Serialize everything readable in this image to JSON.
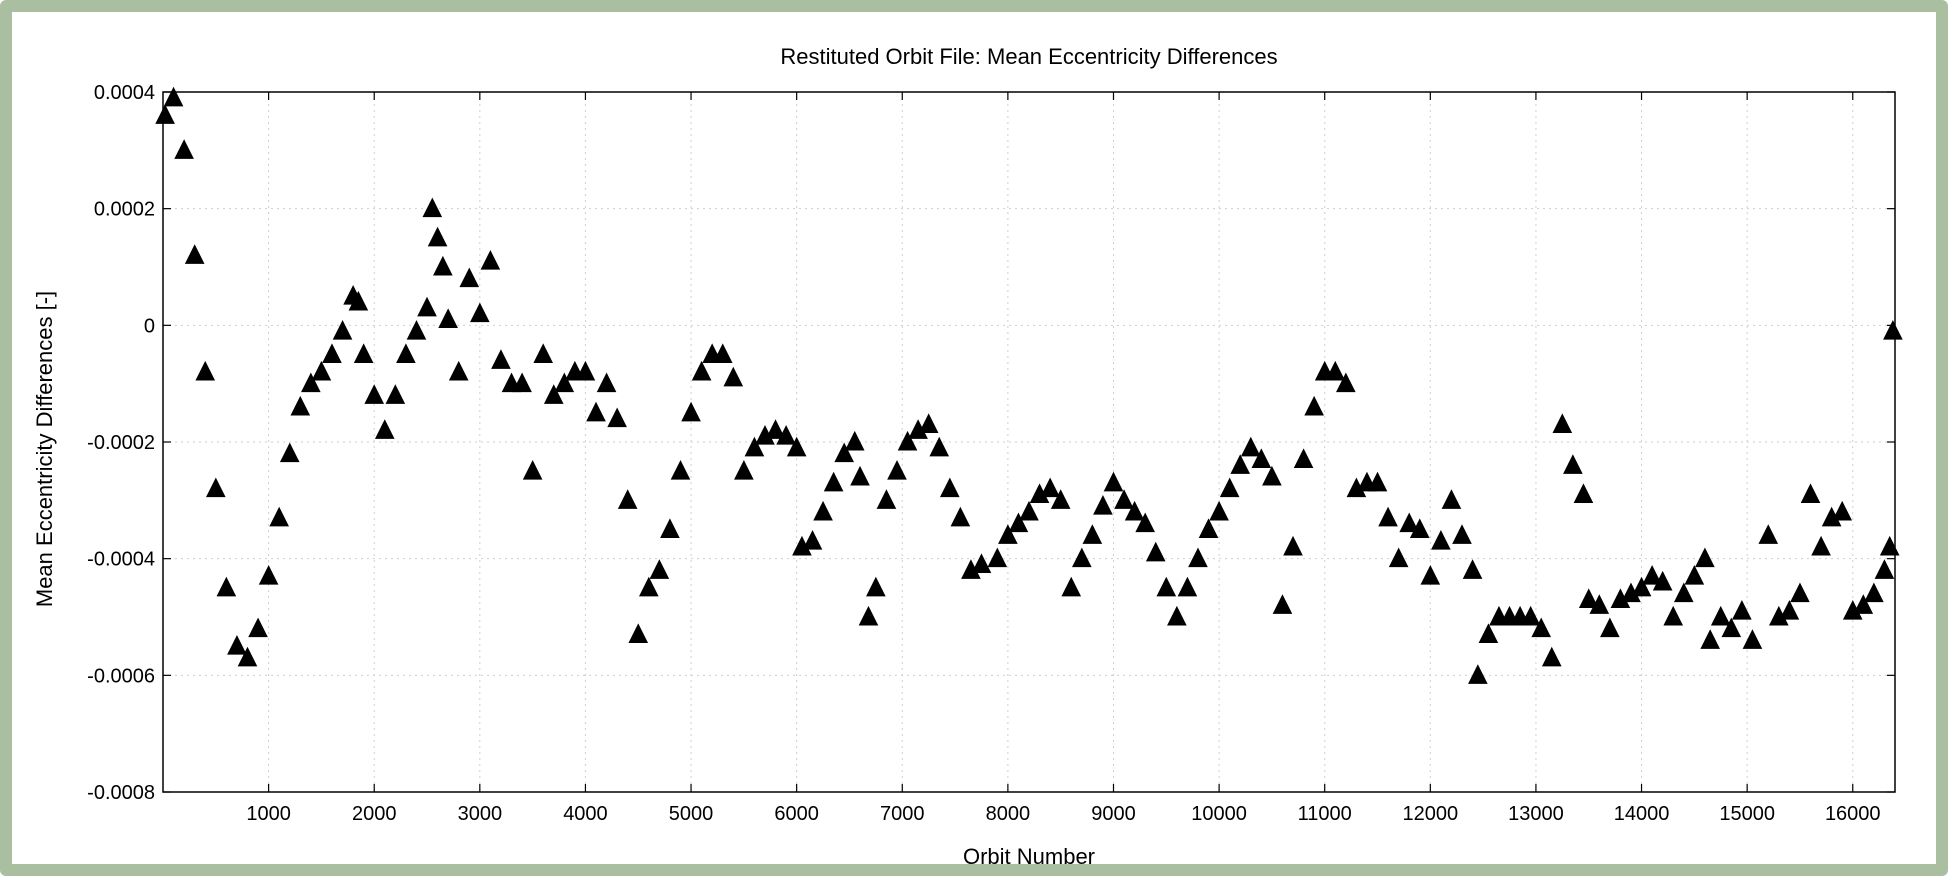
{
  "chart_data": {
    "type": "scatter",
    "title": "Restituted Orbit File: Mean Eccentricity Differences",
    "xlabel": "Orbit Number",
    "ylabel": "Mean Eccentricity Differences [-]",
    "xlim": [
      0,
      16400
    ],
    "ylim": [
      -0.0008,
      0.0004
    ],
    "x_ticks": [
      1000,
      2000,
      3000,
      4000,
      5000,
      6000,
      7000,
      8000,
      9000,
      10000,
      11000,
      12000,
      13000,
      14000,
      15000,
      16000
    ],
    "y_ticks": [
      {
        "value": 0.0004,
        "label": "0.0004"
      },
      {
        "value": 0.0002,
        "label": "0.0002"
      },
      {
        "value": 0,
        "label": "0"
      },
      {
        "value": -0.0002,
        "label": "-0.0002"
      },
      {
        "value": -0.0004,
        "label": "-0.0004"
      },
      {
        "value": -0.0006,
        "label": "-0.0006"
      },
      {
        "value": -0.0008,
        "label": "-0.0008"
      }
    ],
    "grid": true,
    "marker": "triangle",
    "marker_color": "#000000",
    "series": [
      {
        "values": [
          [
            20,
            0.00036
          ],
          [
            100,
            0.00039
          ],
          [
            200,
            0.0003
          ],
          [
            300,
            0.00012
          ],
          [
            400,
            -8e-05
          ],
          [
            500,
            -0.00028
          ],
          [
            600,
            -0.00045
          ],
          [
            700,
            -0.00055
          ],
          [
            800,
            -0.00057
          ],
          [
            900,
            -0.00052
          ],
          [
            1000,
            -0.00043
          ],
          [
            1100,
            -0.00033
          ],
          [
            1200,
            -0.00022
          ],
          [
            1300,
            -0.00014
          ],
          [
            1400,
            -0.0001
          ],
          [
            1500,
            -8e-05
          ],
          [
            1600,
            -5e-05
          ],
          [
            1700,
            -1e-05
          ],
          [
            1800,
            5e-05
          ],
          [
            1850,
            4e-05
          ],
          [
            1900,
            -5e-05
          ],
          [
            2000,
            -0.00012
          ],
          [
            2100,
            -0.00018
          ],
          [
            2200,
            -0.00012
          ],
          [
            2300,
            -5e-05
          ],
          [
            2400,
            -1e-05
          ],
          [
            2500,
            3e-05
          ],
          [
            2550,
            0.0002
          ],
          [
            2600,
            0.00015
          ],
          [
            2650,
            0.0001
          ],
          [
            2700,
            1e-05
          ],
          [
            2800,
            -8e-05
          ],
          [
            2900,
            8e-05
          ],
          [
            3000,
            2e-05
          ],
          [
            3100,
            0.00011
          ],
          [
            3200,
            -6e-05
          ],
          [
            3300,
            -0.0001
          ],
          [
            3400,
            -0.0001
          ],
          [
            3500,
            -0.00025
          ],
          [
            3600,
            -5e-05
          ],
          [
            3700,
            -0.00012
          ],
          [
            3800,
            -0.0001
          ],
          [
            3900,
            -8e-05
          ],
          [
            4000,
            -8e-05
          ],
          [
            4100,
            -0.00015
          ],
          [
            4200,
            -0.0001
          ],
          [
            4300,
            -0.00016
          ],
          [
            4400,
            -0.0003
          ],
          [
            4500,
            -0.00053
          ],
          [
            4600,
            -0.00045
          ],
          [
            4700,
            -0.00042
          ],
          [
            4800,
            -0.00035
          ],
          [
            4900,
            -0.00025
          ],
          [
            5000,
            -0.00015
          ],
          [
            5100,
            -8e-05
          ],
          [
            5200,
            -5e-05
          ],
          [
            5300,
            -5e-05
          ],
          [
            5400,
            -9e-05
          ],
          [
            5500,
            -0.00025
          ],
          [
            5600,
            -0.00021
          ],
          [
            5700,
            -0.00019
          ],
          [
            5800,
            -0.00018
          ],
          [
            5900,
            -0.00019
          ],
          [
            6000,
            -0.00021
          ],
          [
            6050,
            -0.00038
          ],
          [
            6150,
            -0.00037
          ],
          [
            6250,
            -0.00032
          ],
          [
            6350,
            -0.00027
          ],
          [
            6450,
            -0.00022
          ],
          [
            6550,
            -0.0002
          ],
          [
            6600,
            -0.00026
          ],
          [
            6680,
            -0.0005
          ],
          [
            6750,
            -0.00045
          ],
          [
            6850,
            -0.0003
          ],
          [
            6950,
            -0.00025
          ],
          [
            7050,
            -0.0002
          ],
          [
            7150,
            -0.00018
          ],
          [
            7250,
            -0.00017
          ],
          [
            7350,
            -0.00021
          ],
          [
            7450,
            -0.00028
          ],
          [
            7550,
            -0.00033
          ],
          [
            7650,
            -0.00042
          ],
          [
            7750,
            -0.00041
          ],
          [
            7900,
            -0.0004
          ],
          [
            8000,
            -0.00036
          ],
          [
            8100,
            -0.00034
          ],
          [
            8200,
            -0.00032
          ],
          [
            8300,
            -0.00029
          ],
          [
            8400,
            -0.00028
          ],
          [
            8500,
            -0.0003
          ],
          [
            8600,
            -0.00045
          ],
          [
            8700,
            -0.0004
          ],
          [
            8800,
            -0.00036
          ],
          [
            8900,
            -0.00031
          ],
          [
            9000,
            -0.00027
          ],
          [
            9100,
            -0.0003
          ],
          [
            9200,
            -0.00032
          ],
          [
            9300,
            -0.00034
          ],
          [
            9400,
            -0.00039
          ],
          [
            9500,
            -0.00045
          ],
          [
            9600,
            -0.0005
          ],
          [
            9700,
            -0.00045
          ],
          [
            9800,
            -0.0004
          ],
          [
            9900,
            -0.00035
          ],
          [
            10000,
            -0.00032
          ],
          [
            10100,
            -0.00028
          ],
          [
            10200,
            -0.00024
          ],
          [
            10300,
            -0.00021
          ],
          [
            10400,
            -0.00023
          ],
          [
            10500,
            -0.00026
          ],
          [
            10600,
            -0.00048
          ],
          [
            10700,
            -0.00038
          ],
          [
            10800,
            -0.00023
          ],
          [
            10900,
            -0.00014
          ],
          [
            11000,
            -8e-05
          ],
          [
            11100,
            -8e-05
          ],
          [
            11200,
            -0.0001
          ],
          [
            11300,
            -0.00028
          ],
          [
            11400,
            -0.00027
          ],
          [
            11500,
            -0.00027
          ],
          [
            11600,
            -0.00033
          ],
          [
            11700,
            -0.0004
          ],
          [
            11800,
            -0.00034
          ],
          [
            11900,
            -0.00035
          ],
          [
            12000,
            -0.00043
          ],
          [
            12100,
            -0.00037
          ],
          [
            12200,
            -0.0003
          ],
          [
            12300,
            -0.00036
          ],
          [
            12400,
            -0.00042
          ],
          [
            12450,
            -0.0006
          ],
          [
            12550,
            -0.00053
          ],
          [
            12650,
            -0.0005
          ],
          [
            12750,
            -0.0005
          ],
          [
            12850,
            -0.0005
          ],
          [
            12950,
            -0.0005
          ],
          [
            13050,
            -0.00052
          ],
          [
            13150,
            -0.00057
          ],
          [
            13250,
            -0.00017
          ],
          [
            13350,
            -0.00024
          ],
          [
            13450,
            -0.00029
          ],
          [
            13500,
            -0.00047
          ],
          [
            13600,
            -0.00048
          ],
          [
            13700,
            -0.00052
          ],
          [
            13800,
            -0.00047
          ],
          [
            13900,
            -0.00046
          ],
          [
            14000,
            -0.00045
          ],
          [
            14100,
            -0.00043
          ],
          [
            14200,
            -0.00044
          ],
          [
            14300,
            -0.0005
          ],
          [
            14400,
            -0.00046
          ],
          [
            14500,
            -0.00043
          ],
          [
            14600,
            -0.0004
          ],
          [
            14650,
            -0.00054
          ],
          [
            14750,
            -0.0005
          ],
          [
            14850,
            -0.00052
          ],
          [
            14950,
            -0.00049
          ],
          [
            15050,
            -0.00054
          ],
          [
            15200,
            -0.00036
          ],
          [
            15300,
            -0.0005
          ],
          [
            15400,
            -0.00049
          ],
          [
            15500,
            -0.00046
          ],
          [
            15600,
            -0.00029
          ],
          [
            15700,
            -0.00038
          ],
          [
            15800,
            -0.00033
          ],
          [
            15900,
            -0.00032
          ],
          [
            16000,
            -0.00049
          ],
          [
            16100,
            -0.00048
          ],
          [
            16200,
            -0.00046
          ],
          [
            16300,
            -0.00042
          ],
          [
            16350,
            -0.00038
          ],
          [
            16380,
            -1e-05
          ]
        ]
      }
    ]
  }
}
